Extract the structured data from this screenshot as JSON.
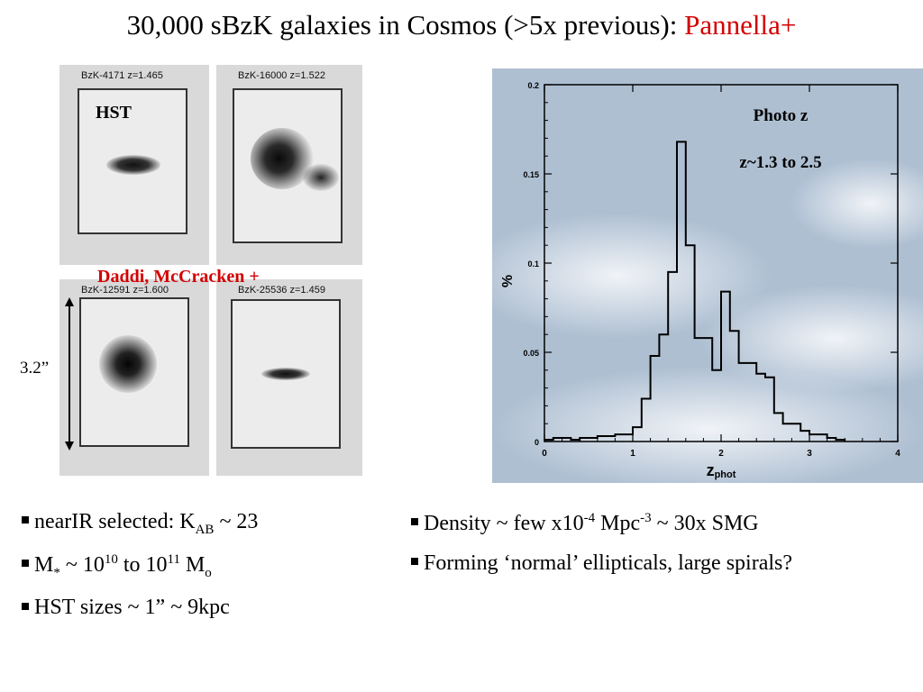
{
  "title": {
    "text": "30,000 sBzK galaxies in Cosmos (>5x previous): ",
    "highlight": "Pannella+"
  },
  "stamps": [
    {
      "label": "BzK-4171 z=1.465"
    },
    {
      "label": "BzK-16000 z=1.522"
    },
    {
      "label": "BzK-12591 z=1.600"
    },
    {
      "label": "BzK-25536 z=1.459"
    }
  ],
  "hst_label": "HST",
  "credit": "Daddi, McCracken +",
  "scale_label": "3.2”",
  "chart_data": {
    "type": "line",
    "step": true,
    "title": "",
    "annotations": [
      "Photo z",
      "z~1.3 to 2.5"
    ],
    "xlabel": "z",
    "xlabel_sub": "phot",
    "ylabel": "%",
    "xlim": [
      0,
      4
    ],
    "ylim": [
      0,
      0.2
    ],
    "xticks": [
      "0",
      "1",
      "2",
      "3",
      "4"
    ],
    "yticks": [
      "0",
      "0.05",
      "0.1",
      "0.15",
      "0.2"
    ],
    "grid": false,
    "bin_width": 0.1,
    "x": [
      0.0,
      0.1,
      0.2,
      0.3,
      0.4,
      0.5,
      0.6,
      0.7,
      0.8,
      0.9,
      1.0,
      1.1,
      1.2,
      1.3,
      1.4,
      1.5,
      1.6,
      1.7,
      1.8,
      1.9,
      2.0,
      2.1,
      2.2,
      2.3,
      2.4,
      2.5,
      2.6,
      2.7,
      2.8,
      2.9,
      3.0,
      3.1,
      3.2,
      3.3
    ],
    "values": [
      0.001,
      0.002,
      0.002,
      0.001,
      0.002,
      0.002,
      0.003,
      0.003,
      0.004,
      0.004,
      0.008,
      0.024,
      0.048,
      0.06,
      0.095,
      0.168,
      0.11,
      0.058,
      0.058,
      0.04,
      0.084,
      0.062,
      0.044,
      0.044,
      0.038,
      0.036,
      0.016,
      0.01,
      0.01,
      0.006,
      0.004,
      0.004,
      0.002,
      0.001
    ]
  },
  "bullets_left": {
    "b1": {
      "pre": "nearIR selected: K",
      "sub": "AB",
      "post": " ~ 23"
    },
    "b2": {
      "m": "M",
      "star": "*",
      "mid": " ~ 10",
      "sup1": "10",
      "to": " to 10",
      "sup2": "11",
      "post": " M",
      "sub": "o"
    },
    "b3": {
      "text": "HST sizes ~ 1” ~ 9kpc"
    }
  },
  "bullets_right": {
    "b1": {
      "pre": "Density ~ few x10",
      "sup1": "-4",
      "mid": " Mpc",
      "sup2": "-3",
      "post": " ~ 30x SMG"
    },
    "b2": {
      "text": "Forming ‘normal’ ellipticals, large spirals?"
    }
  }
}
